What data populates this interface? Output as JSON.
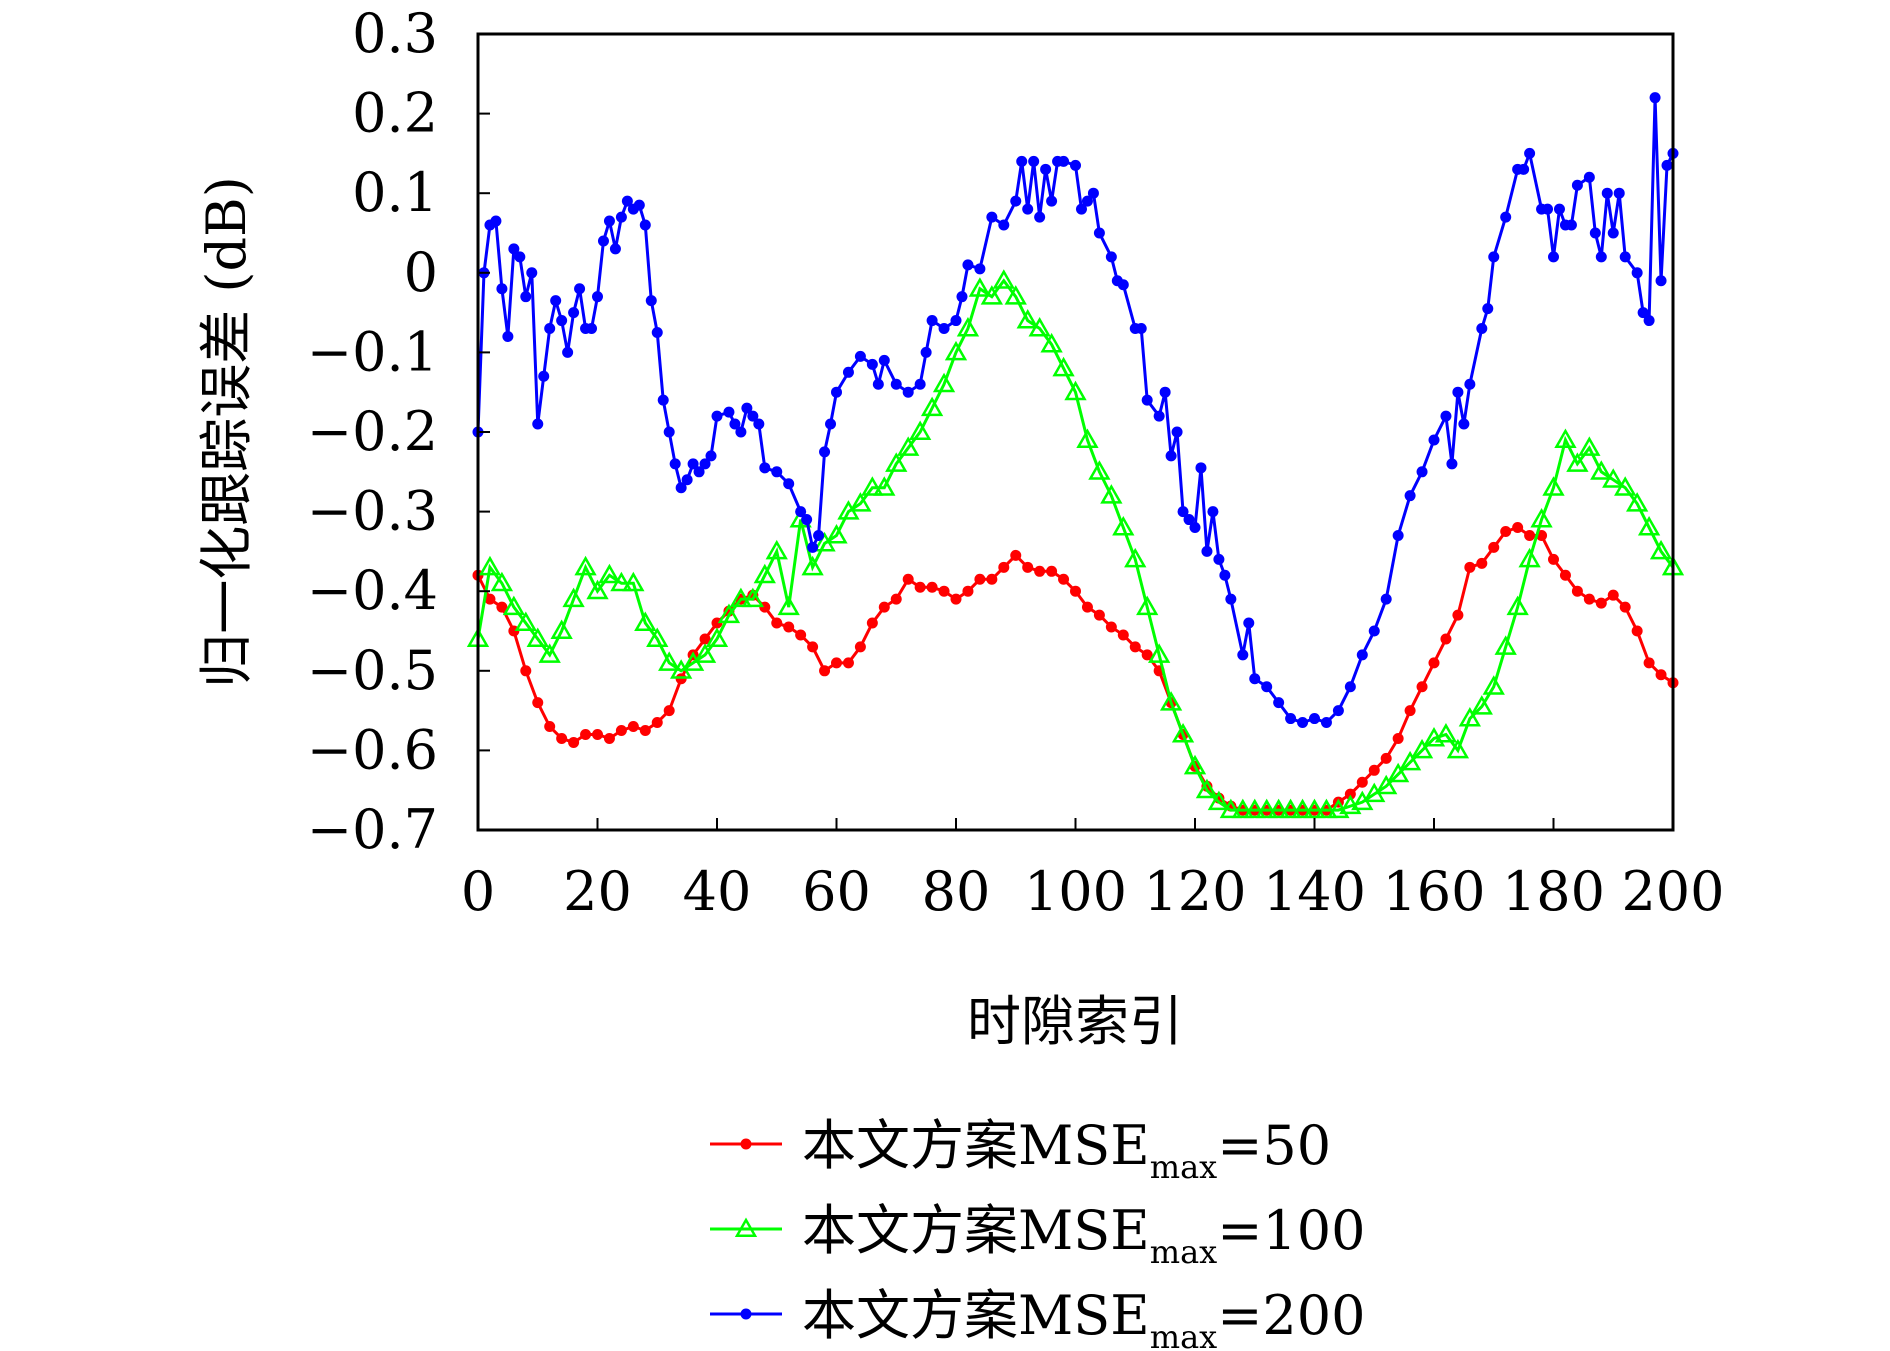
{
  "chart_data": {
    "type": "line",
    "title": "",
    "xlabel": "时隙索引",
    "ylabel": "归一化跟踪误差 (dB)",
    "xlim": [
      0,
      200
    ],
    "ylim": [
      -0.7,
      0.3
    ],
    "xticks": [
      "0",
      "20",
      "40",
      "60",
      "80",
      "100",
      "120",
      "140",
      "160",
      "180",
      "200"
    ],
    "yticks": [
      "0.3",
      "0.2",
      "0.1",
      "0",
      "−0.1",
      "−0.2",
      "−0.3",
      "−0.4",
      "−0.5",
      "−0.6",
      "−0.7"
    ],
    "grid": false,
    "legend_position": "bottom-center",
    "series": [
      {
        "name": "本文方案MSE_max=50",
        "legend_prefix": "本文方案MSE",
        "legend_sub": "max",
        "legend_suffix": "=50",
        "color": "#ff0000",
        "marker": "dot",
        "x": [
          0,
          2,
          4,
          6,
          8,
          10,
          12,
          14,
          16,
          18,
          20,
          22,
          24,
          26,
          28,
          30,
          32,
          34,
          36,
          38,
          40,
          42,
          44,
          46,
          48,
          50,
          52,
          54,
          56,
          58,
          60,
          62,
          64,
          66,
          68,
          70,
          72,
          74,
          76,
          78,
          80,
          82,
          84,
          86,
          88,
          90,
          92,
          94,
          96,
          98,
          100,
          102,
          104,
          106,
          108,
          110,
          112,
          114,
          116,
          118,
          120,
          122,
          124,
          126,
          128,
          130,
          132,
          134,
          136,
          138,
          140,
          142,
          144,
          146,
          148,
          150,
          152,
          154,
          156,
          158,
          160,
          162,
          164,
          166,
          168,
          170,
          172,
          174,
          176,
          178,
          180,
          182,
          184,
          186,
          188,
          190,
          192,
          194,
          196,
          198,
          200
        ],
        "y": [
          -0.38,
          -0.41,
          -0.42,
          -0.45,
          -0.5,
          -0.54,
          -0.57,
          -0.585,
          -0.59,
          -0.58,
          -0.58,
          -0.585,
          -0.575,
          -0.57,
          -0.575,
          -0.565,
          -0.55,
          -0.51,
          -0.48,
          -0.46,
          -0.44,
          -0.425,
          -0.41,
          -0.405,
          -0.42,
          -0.44,
          -0.445,
          -0.455,
          -0.47,
          -0.5,
          -0.49,
          -0.49,
          -0.47,
          -0.44,
          -0.42,
          -0.41,
          -0.385,
          -0.395,
          -0.395,
          -0.4,
          -0.41,
          -0.4,
          -0.385,
          -0.385,
          -0.37,
          -0.355,
          -0.37,
          -0.375,
          -0.375,
          -0.385,
          -0.4,
          -0.42,
          -0.43,
          -0.445,
          -0.455,
          -0.47,
          -0.48,
          -0.5,
          -0.54,
          -0.58,
          -0.62,
          -0.645,
          -0.66,
          -0.67,
          -0.675,
          -0.675,
          -0.675,
          -0.675,
          -0.675,
          -0.675,
          -0.675,
          -0.675,
          -0.665,
          -0.655,
          -0.64,
          -0.625,
          -0.61,
          -0.585,
          -0.55,
          -0.52,
          -0.49,
          -0.46,
          -0.43,
          -0.37,
          -0.365,
          -0.345,
          -0.325,
          -0.32,
          -0.33,
          -0.33,
          -0.36,
          -0.38,
          -0.4,
          -0.41,
          -0.415,
          -0.405,
          -0.42,
          -0.45,
          -0.49,
          -0.505,
          -0.515
        ]
      },
      {
        "name": "本文方案MSE_max=100",
        "legend_prefix": "本文方案MSE",
        "legend_sub": "max",
        "legend_suffix": "=100",
        "color": "#00ff00",
        "marker": "triangle",
        "x": [
          0,
          2,
          4,
          6,
          8,
          10,
          12,
          14,
          16,
          18,
          20,
          22,
          24,
          26,
          28,
          30,
          32,
          34,
          36,
          38,
          40,
          42,
          44,
          46,
          48,
          50,
          52,
          54,
          56,
          58,
          60,
          62,
          64,
          66,
          68,
          70,
          72,
          74,
          76,
          78,
          80,
          82,
          84,
          86,
          88,
          90,
          92,
          94,
          96,
          98,
          100,
          102,
          104,
          106,
          108,
          110,
          112,
          114,
          116,
          118,
          120,
          122,
          124,
          126,
          128,
          130,
          132,
          134,
          136,
          138,
          140,
          142,
          144,
          146,
          148,
          150,
          152,
          154,
          156,
          158,
          160,
          162,
          164,
          166,
          168,
          170,
          172,
          174,
          176,
          178,
          180,
          182,
          184,
          186,
          188,
          190,
          192,
          194,
          196,
          198,
          200
        ],
        "y": [
          -0.46,
          -0.37,
          -0.39,
          -0.42,
          -0.44,
          -0.46,
          -0.48,
          -0.45,
          -0.41,
          -0.37,
          -0.4,
          -0.38,
          -0.39,
          -0.39,
          -0.44,
          -0.46,
          -0.49,
          -0.5,
          -0.49,
          -0.48,
          -0.46,
          -0.43,
          -0.41,
          -0.41,
          -0.38,
          -0.35,
          -0.42,
          -0.31,
          -0.37,
          -0.34,
          -0.33,
          -0.3,
          -0.29,
          -0.27,
          -0.27,
          -0.24,
          -0.22,
          -0.2,
          -0.17,
          -0.14,
          -0.1,
          -0.07,
          -0.02,
          -0.03,
          -0.01,
          -0.03,
          -0.06,
          -0.07,
          -0.09,
          -0.12,
          -0.15,
          -0.21,
          -0.25,
          -0.28,
          -0.32,
          -0.36,
          -0.42,
          -0.48,
          -0.54,
          -0.58,
          -0.62,
          -0.65,
          -0.665,
          -0.675,
          -0.675,
          -0.675,
          -0.675,
          -0.675,
          -0.675,
          -0.675,
          -0.675,
          -0.675,
          -0.675,
          -0.67,
          -0.665,
          -0.655,
          -0.645,
          -0.63,
          -0.615,
          -0.6,
          -0.585,
          -0.58,
          -0.6,
          -0.56,
          -0.545,
          -0.52,
          -0.47,
          -0.42,
          -0.36,
          -0.31,
          -0.27,
          -0.21,
          -0.24,
          -0.22,
          -0.25,
          -0.26,
          -0.27,
          -0.29,
          -0.32,
          -0.35,
          -0.37
        ]
      },
      {
        "name": "本文方案MSE_max=200",
        "legend_prefix": "本文方案MSE",
        "legend_sub": "max",
        "legend_suffix": "=200",
        "color": "#0000ff",
        "marker": "dot",
        "x": [
          0,
          1,
          2,
          3,
          4,
          5,
          6,
          7,
          8,
          9,
          10,
          11,
          12,
          13,
          14,
          15,
          16,
          17,
          18,
          19,
          20,
          21,
          22,
          23,
          24,
          25,
          26,
          27,
          28,
          29,
          30,
          31,
          32,
          33,
          34,
          35,
          36,
          37,
          38,
          39,
          40,
          42,
          43,
          44,
          45,
          46,
          47,
          48,
          50,
          52,
          54,
          55,
          56,
          57,
          58,
          59,
          60,
          62,
          64,
          66,
          67,
          68,
          70,
          72,
          74,
          75,
          76,
          78,
          80,
          81,
          82,
          84,
          86,
          88,
          90,
          91,
          92,
          93,
          94,
          95,
          96,
          97,
          98,
          100,
          101,
          102,
          103,
          104,
          106,
          107,
          108,
          110,
          111,
          112,
          114,
          115,
          116,
          117,
          118,
          119,
          120,
          121,
          122,
          123,
          124,
          125,
          126,
          128,
          129,
          130,
          132,
          134,
          136,
          138,
          140,
          142,
          144,
          146,
          148,
          150,
          152,
          154,
          156,
          158,
          160,
          162,
          163,
          164,
          165,
          166,
          168,
          169,
          170,
          172,
          174,
          175,
          176,
          178,
          179,
          180,
          181,
          182,
          183,
          184,
          186,
          187,
          188,
          189,
          190,
          191,
          192,
          194,
          195,
          196,
          197,
          198,
          199,
          200
        ],
        "y": [
          -0.2,
          0.0,
          0.06,
          0.065,
          -0.02,
          -0.08,
          0.03,
          0.02,
          -0.03,
          0.0,
          -0.19,
          -0.13,
          -0.07,
          -0.035,
          -0.06,
          -0.1,
          -0.05,
          -0.02,
          -0.07,
          -0.07,
          -0.03,
          0.04,
          0.065,
          0.03,
          0.07,
          0.09,
          0.08,
          0.085,
          0.06,
          -0.035,
          -0.075,
          -0.16,
          -0.2,
          -0.24,
          -0.27,
          -0.26,
          -0.24,
          -0.25,
          -0.24,
          -0.23,
          -0.18,
          -0.175,
          -0.19,
          -0.2,
          -0.17,
          -0.18,
          -0.19,
          -0.245,
          -0.25,
          -0.265,
          -0.3,
          -0.31,
          -0.345,
          -0.33,
          -0.225,
          -0.19,
          -0.15,
          -0.125,
          -0.105,
          -0.115,
          -0.14,
          -0.11,
          -0.14,
          -0.15,
          -0.14,
          -0.1,
          -0.06,
          -0.07,
          -0.06,
          -0.03,
          0.01,
          0.005,
          0.07,
          0.06,
          0.09,
          0.14,
          0.08,
          0.14,
          0.07,
          0.13,
          0.09,
          0.14,
          0.14,
          0.135,
          0.08,
          0.09,
          0.1,
          0.05,
          0.02,
          -0.01,
          -0.015,
          -0.07,
          -0.07,
          -0.16,
          -0.18,
          -0.15,
          -0.23,
          -0.2,
          -0.3,
          -0.31,
          -0.32,
          -0.245,
          -0.35,
          -0.3,
          -0.36,
          -0.38,
          -0.41,
          -0.48,
          -0.44,
          -0.51,
          -0.52,
          -0.54,
          -0.56,
          -0.565,
          -0.56,
          -0.565,
          -0.55,
          -0.52,
          -0.48,
          -0.45,
          -0.41,
          -0.33,
          -0.28,
          -0.25,
          -0.21,
          -0.18,
          -0.24,
          -0.15,
          -0.19,
          -0.14,
          -0.07,
          -0.045,
          0.02,
          0.07,
          0.13,
          0.13,
          0.15,
          0.08,
          0.08,
          0.02,
          0.08,
          0.06,
          0.06,
          0.11,
          0.12,
          0.05,
          0.02,
          0.1,
          0.05,
          0.1,
          0.02,
          0.0,
          -0.05,
          -0.06,
          0.22,
          -0.01,
          0.135,
          0.15
        ]
      }
    ]
  }
}
